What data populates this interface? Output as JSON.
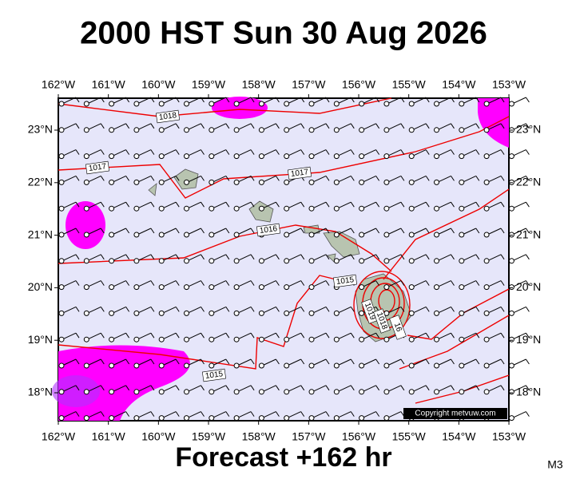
{
  "header": {
    "title": "2000 HST Sun 30 Aug 2026"
  },
  "map": {
    "lon_labels": [
      "162°W",
      "161°W",
      "160°W",
      "159°W",
      "158°W",
      "157°W",
      "156°W",
      "155°W",
      "154°W",
      "153°W"
    ],
    "lat_labels": [
      "23°N",
      "22°N",
      "21°N",
      "20°N",
      "19°N",
      "18°N"
    ],
    "isobar_labels": [
      "1018",
      "1017",
      "1017",
      "1016",
      "1015",
      "1015",
      "1019",
      "1018",
      "16"
    ],
    "copyright": "Copyright metvuw.com"
  },
  "footer": {
    "forecast": "Forecast +162 hr",
    "code": "M3"
  }
}
